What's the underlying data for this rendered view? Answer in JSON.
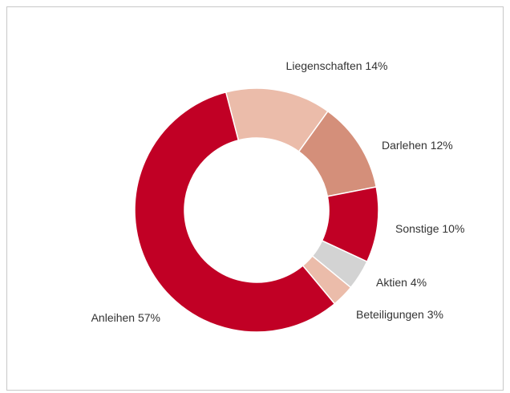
{
  "chart_data": {
    "type": "pie",
    "categories": [
      "Liegenschaften",
      "Darlehen",
      "Sonstige",
      "Aktien",
      "Beteiligungen",
      "Anleihen"
    ],
    "values": [
      14,
      12,
      10,
      4,
      3,
      57
    ],
    "value_labels": [
      "14%",
      "12%",
      "10%",
      "4%",
      "3%",
      "57%"
    ],
    "colors": [
      "#ebbcaa",
      "#d48f7a",
      "#c10025",
      "#d3d3d3",
      "#ebbcaa",
      "#c10025"
    ]
  }
}
